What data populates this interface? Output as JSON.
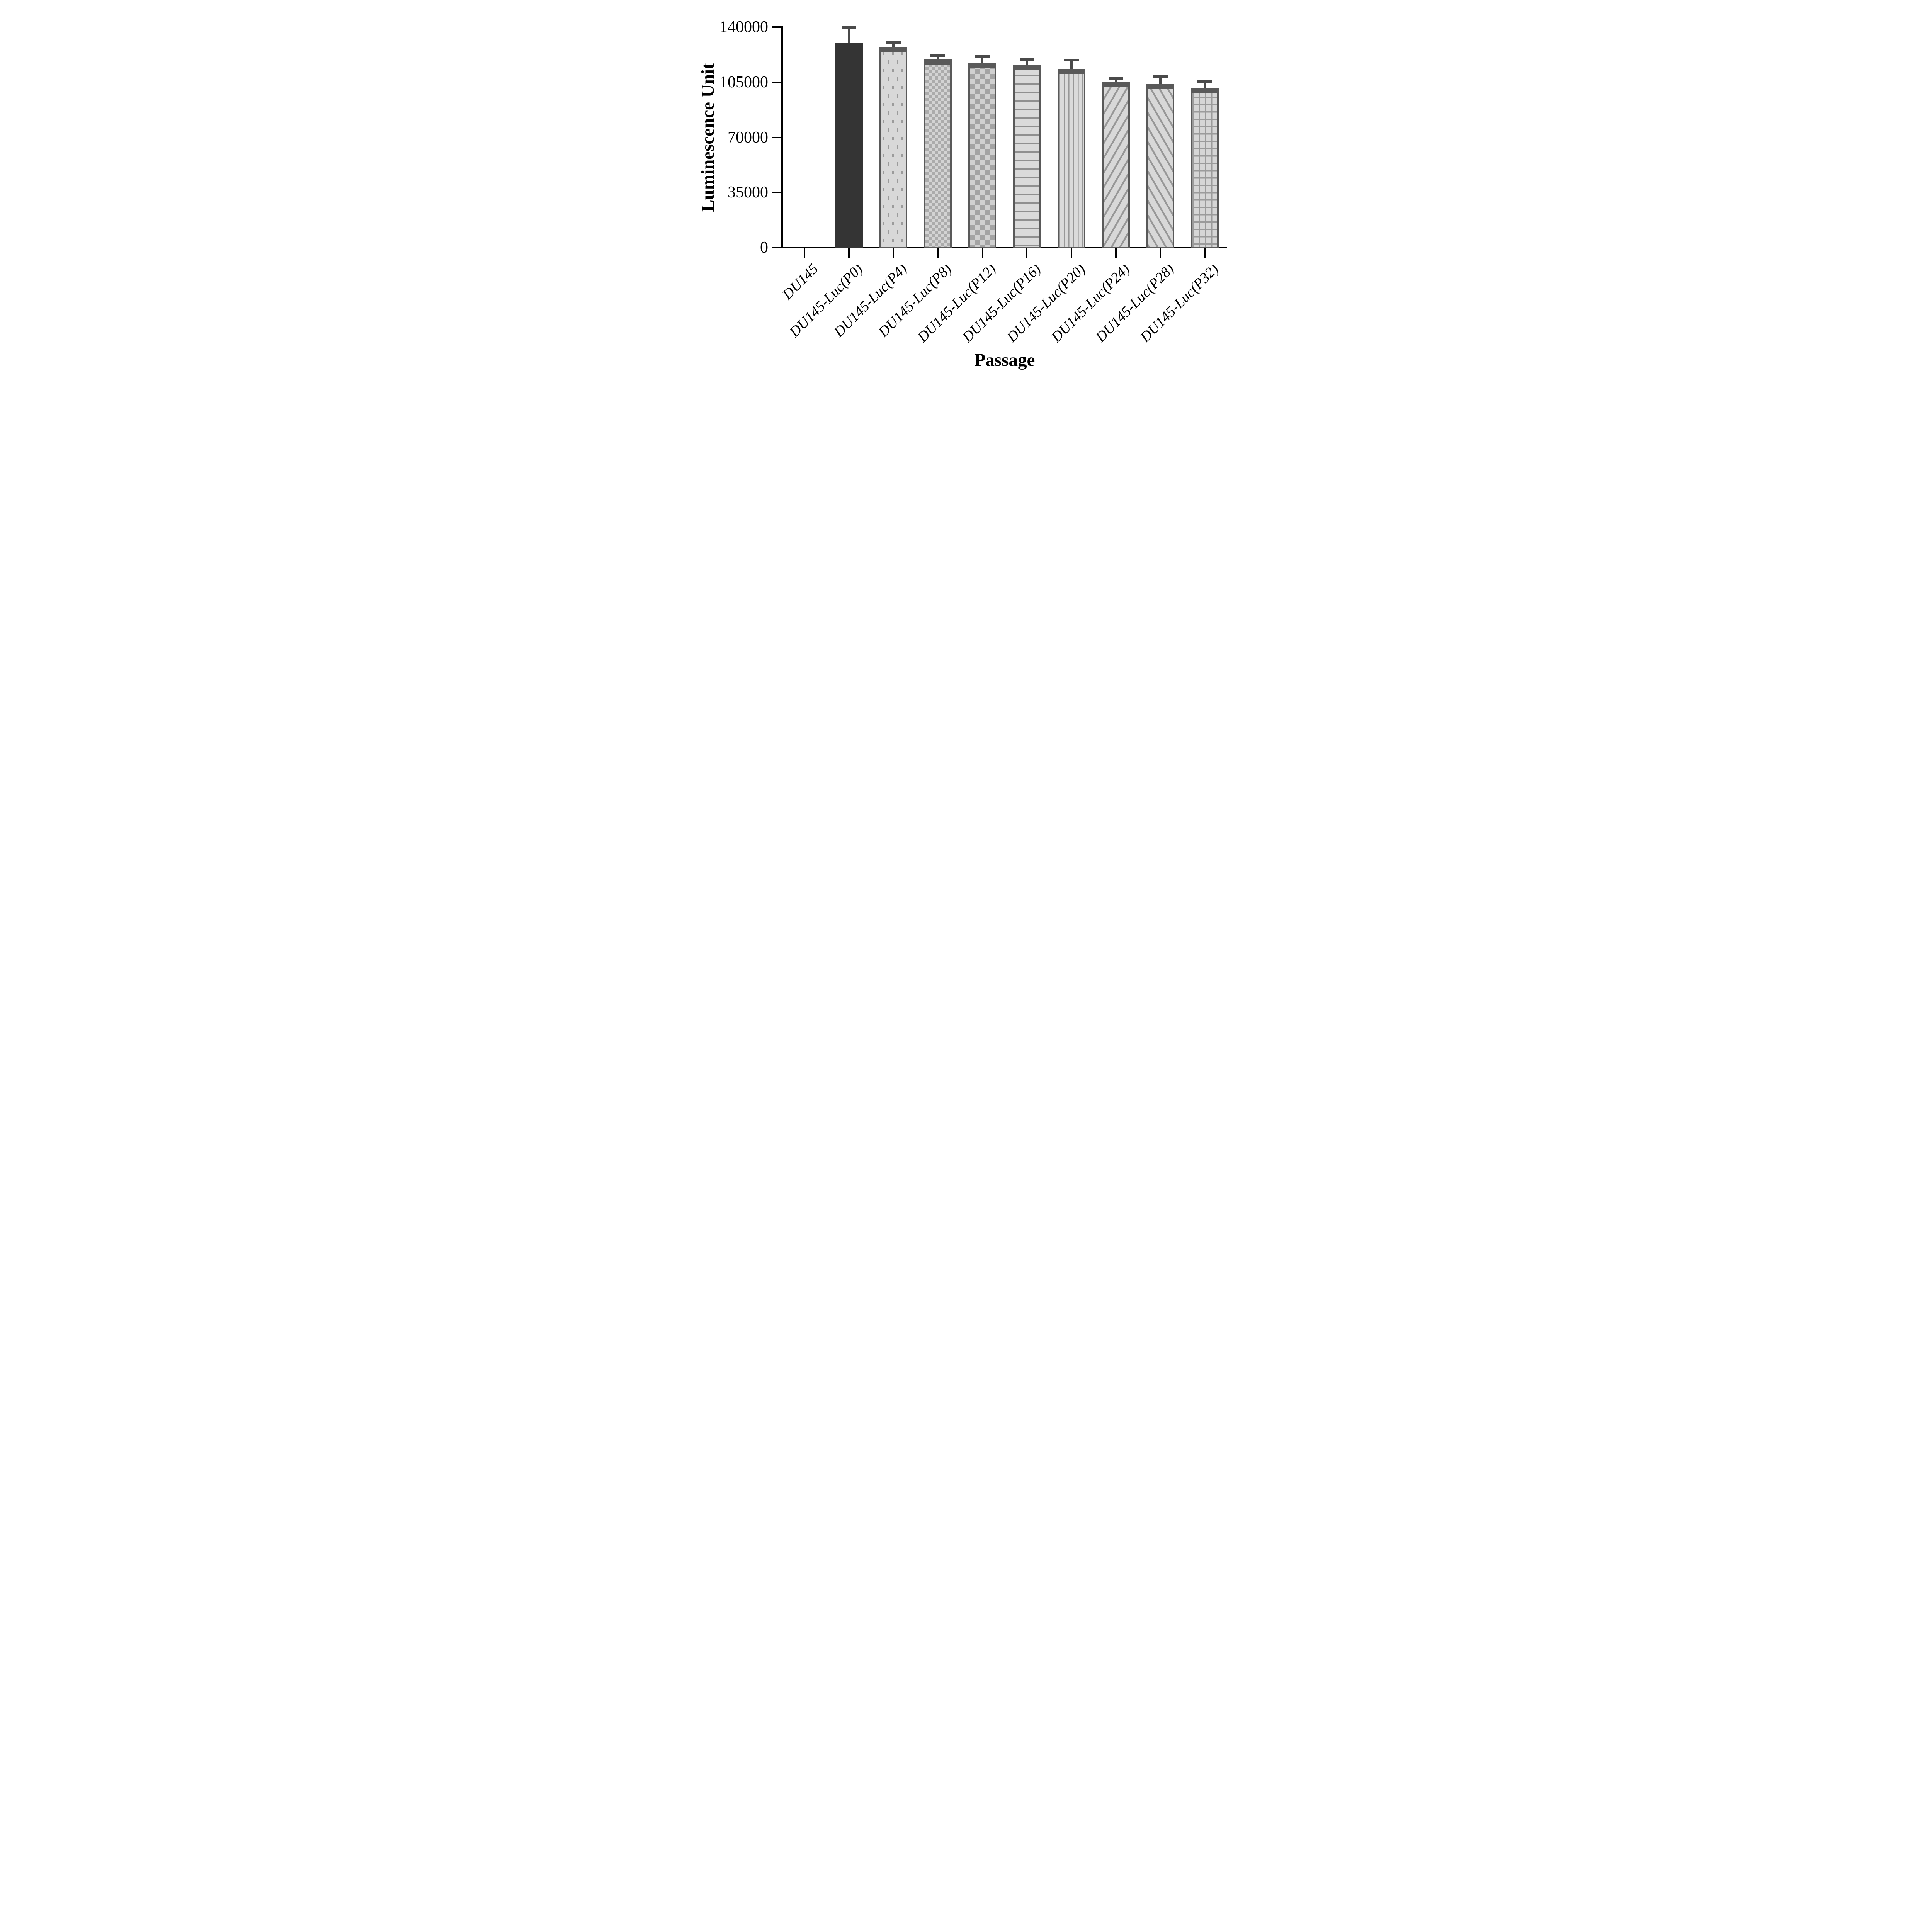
{
  "chart_data": {
    "type": "bar",
    "title": "",
    "xlabel": "Passage",
    "ylabel": "Luminescence Unit",
    "ylim": [
      0,
      140000
    ],
    "yticks": [
      0,
      35000,
      70000,
      105000,
      140000
    ],
    "grid": false,
    "legend_position": "none",
    "categories": [
      "DU145",
      "DU145-Luc(P0)",
      "DU145-Luc(P4)",
      "DU145-Luc(P8)",
      "DU145-Luc(P12)",
      "DU145-Luc(P16)",
      "DU145-Luc(P20)",
      "DU145-Luc(P24)",
      "DU145-Luc(P28)",
      "DU145-Luc(P32)"
    ],
    "series": [
      {
        "name": "Luminescence Unit",
        "values": [
          0,
          130000,
          127500,
          119500,
          117500,
          116000,
          113500,
          105500,
          104000,
          101500
        ],
        "errors_sd_plus": [
          0,
          8800,
          2000,
          1700,
          3000,
          2600,
          4800,
          1000,
          3800,
          3000
        ]
      }
    ],
    "bar_patterns": [
      "none",
      "solid",
      "dots",
      "checker-fine",
      "checker",
      "hlines",
      "vlines",
      "diag-up",
      "diag-down",
      "grid"
    ],
    "colors": {
      "solid_fill": "#343434",
      "pattern_background": "#d8d8d8",
      "pattern_foreground": "#9b9b9b",
      "bar_border": "#595959",
      "error_bar": "#4a4a4a",
      "axis": "#000000",
      "text": "#000000",
      "background": "#ffffff"
    }
  }
}
